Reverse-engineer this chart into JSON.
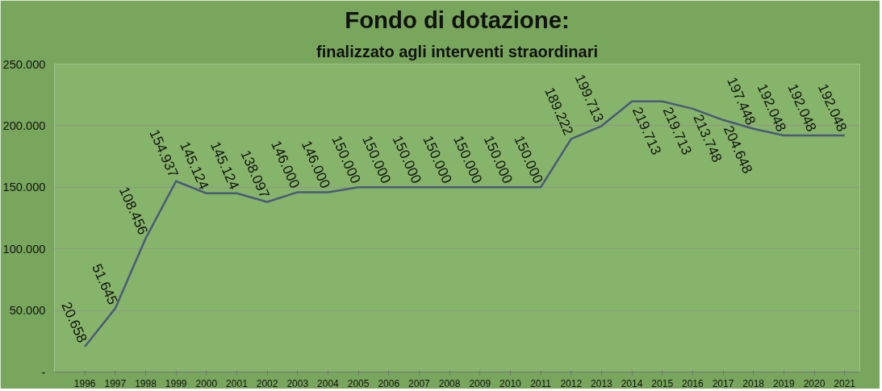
{
  "chart_data": {
    "type": "line",
    "title": "Fondo di dotazione:",
    "subtitle": "finalizzato agli interventi straordinari",
    "categories": [
      "1996",
      "1997",
      "1998",
      "1999",
      "2000",
      "2001",
      "2002",
      "2003",
      "2004",
      "2005",
      "2006",
      "2007",
      "2008",
      "2009",
      "2010",
      "2011",
      "2012",
      "2013",
      "2014",
      "2015",
      "2016",
      "2017",
      "2018",
      "2019",
      "2020",
      "2021"
    ],
    "series": [
      {
        "color": "#4a5a78",
        "values": [
          20658,
          51645,
          108456,
          154937,
          145124,
          145124,
          138097,
          146000,
          146000,
          150000,
          150000,
          150000,
          150000,
          150000,
          150000,
          150000,
          189222,
          199713,
          219713,
          219713,
          213748,
          204648,
          197448,
          192048,
          192048,
          192048
        ],
        "value_labels": [
          "20.658",
          "51.645",
          "108.456",
          "154.937",
          "145.124",
          "145.124",
          "138.097",
          "146.000",
          "146.000",
          "150.000",
          "150.000",
          "150.000",
          "150.000",
          "150.000",
          "150.000",
          "150.000",
          "189.222",
          "199.713",
          "219.713",
          "219.713",
          "213.748",
          "204.648",
          "197.448",
          "192.048",
          "192.048",
          "192.048"
        ]
      }
    ],
    "ylim": [
      0,
      250000
    ],
    "yticks": [
      {
        "value": 0,
        "label": "-"
      },
      {
        "value": 50000,
        "label": "50.000"
      },
      {
        "value": 100000,
        "label": "100.000"
      },
      {
        "value": 150000,
        "label": "150.000"
      },
      {
        "value": 200000,
        "label": "200.000"
      },
      {
        "value": 250000,
        "label": "250.000"
      }
    ],
    "grid": "y",
    "marker": "none",
    "line_style": "solid"
  }
}
